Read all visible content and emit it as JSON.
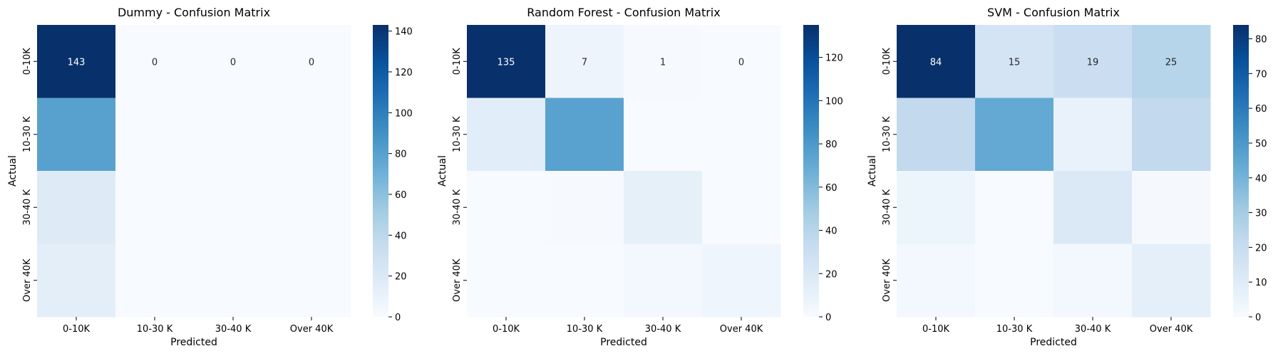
{
  "chart_data": [
    {
      "type": "heatmap",
      "title": "Dummy - Confusion Matrix",
      "xlabel": "Predicted",
      "ylabel": "Actual",
      "x_categories": [
        "0-10K",
        "10-30 K",
        "30-40 K",
        "Over 40K"
      ],
      "y_categories": [
        "0-10K",
        "10-30 K",
        "30-40 K",
        "Over 40K"
      ],
      "matrix": [
        [
          143,
          0,
          0,
          0
        ],
        [
          80,
          0,
          0,
          0
        ],
        [
          18,
          0,
          0,
          0
        ],
        [
          14,
          0,
          0,
          0
        ]
      ],
      "annotated_rows": [
        0
      ],
      "colorbar_ticks": [
        0,
        20,
        40,
        60,
        80,
        100,
        120,
        140
      ],
      "colorbar_range": [
        0,
        143
      ]
    },
    {
      "type": "heatmap",
      "title": "Random Forest - Confusion Matrix",
      "xlabel": "Predicted",
      "ylabel": "Actual",
      "x_categories": [
        "0-10K",
        "10-30 K",
        "30-40 K",
        "Over 40K"
      ],
      "y_categories": [
        "0-10K",
        "10-30 K",
        "30-40 K",
        "Over 40K"
      ],
      "matrix": [
        [
          135,
          7,
          1,
          0
        ],
        [
          15,
          75,
          0,
          0
        ],
        [
          0,
          1,
          12,
          0
        ],
        [
          0,
          0,
          3,
          6
        ]
      ],
      "annotated_rows": [
        0
      ],
      "colorbar_ticks": [
        0,
        20,
        40,
        60,
        80,
        100,
        120
      ],
      "colorbar_range": [
        0,
        135
      ]
    },
    {
      "type": "heatmap",
      "title": "SVM - Confusion Matrix",
      "xlabel": "Predicted",
      "ylabel": "Actual",
      "x_categories": [
        "0-10K",
        "10-30 K",
        "30-40 K",
        "Over 40K"
      ],
      "y_categories": [
        "0-10K",
        "10-30 K",
        "30-40 K",
        "Over 40K"
      ],
      "matrix": [
        [
          84,
          15,
          19,
          25
        ],
        [
          22,
          44,
          6,
          22
        ],
        [
          4,
          0,
          12,
          1
        ],
        [
          2,
          0,
          2,
          8
        ]
      ],
      "annotated_rows": [
        0
      ],
      "colorbar_ticks": [
        0,
        10,
        20,
        30,
        40,
        50,
        60,
        70,
        80
      ],
      "colorbar_range": [
        0,
        84
      ]
    }
  ],
  "colormap": {
    "name": "Blues",
    "stops": [
      "#f7fbff",
      "#deebf7",
      "#c6dbef",
      "#9ecae1",
      "#6baed6",
      "#4292c6",
      "#2171b5",
      "#08519c",
      "#08306b"
    ]
  }
}
